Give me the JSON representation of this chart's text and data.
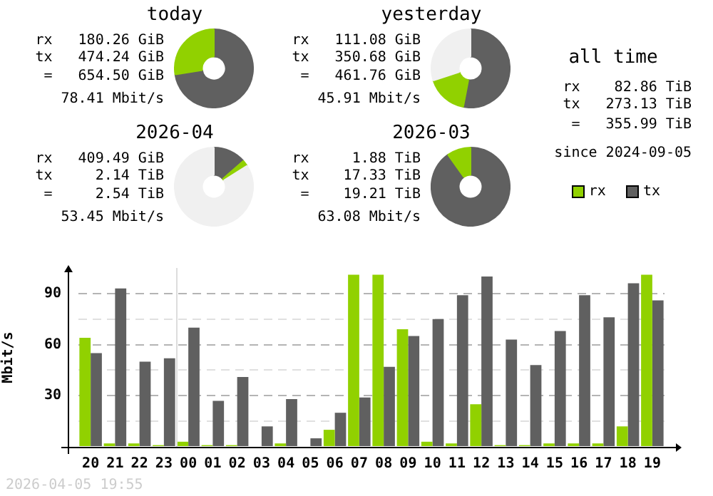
{
  "chart_data": [
    {
      "type": "donut",
      "title": "today",
      "categories": [
        null,
        null
      ],
      "values": [
        72.5,
        27.5
      ],
      "colors": [
        "#606060",
        "#91d100"
      ],
      "annotations": [
        "rx   180.26 GiB",
        "tx   474.24 GiB",
        " =   654.50 GiB",
        "78.41 Mbit/s"
      ]
    },
    {
      "type": "donut",
      "title": "yesterday",
      "categories": [
        null,
        null,
        null
      ],
      "values": [
        53,
        17,
        30
      ],
      "colors": [
        "#606060",
        "#91d100",
        "#f0f0f0"
      ],
      "annotations": [
        "rx   111.08 GiB",
        "tx   350.68 GiB",
        " =   461.76 GiB",
        "45.91 Mbit/s"
      ]
    },
    {
      "type": "other",
      "title": "all time",
      "annotations": [
        "rx    82.86 TiB",
        "tx   273.13 TiB",
        " =   355.99 TiB",
        "since 2024-09-05"
      ]
    },
    {
      "type": "donut",
      "title": "2026-04",
      "categories": [
        null,
        null,
        null
      ],
      "values": [
        13.5,
        2.5,
        84
      ],
      "colors": [
        "#606060",
        "#91d100",
        "#f0f0f0"
      ],
      "annotations": [
        "rx   409.49 GiB",
        "tx     2.14 TiB",
        " =     2.54 TiB",
        "53.45 Mbit/s"
      ]
    },
    {
      "type": "donut",
      "title": "2026-03",
      "categories": [
        null,
        null
      ],
      "values": [
        90.2,
        9.8
      ],
      "colors": [
        "#606060",
        "#91d100"
      ],
      "annotations": [
        "rx     1.88 TiB",
        "tx    17.33 TiB",
        " =    19.21 TiB",
        "63.08 Mbit/s"
      ]
    },
    {
      "type": "bar",
      "ylabel": "Mbit/s",
      "categories": [
        "20",
        "21",
        "22",
        "23",
        "00",
        "01",
        "02",
        "03",
        "04",
        "05",
        "06",
        "07",
        "08",
        "09",
        "10",
        "11",
        "12",
        "13",
        "14",
        "15",
        "16",
        "17",
        "18",
        "19"
      ],
      "series": [
        {
          "name": "rx",
          "color": "#91d100",
          "values": [
            64,
            2,
            2,
            1,
            3,
            1,
            1,
            0,
            2,
            0,
            10,
            101,
            101,
            69,
            3,
            2,
            25,
            1,
            1,
            2,
            2,
            2,
            12,
            101
          ]
        },
        {
          "name": "tx",
          "color": "#606060",
          "values": [
            55,
            93,
            50,
            52,
            70,
            27,
            41,
            12,
            28,
            5,
            20,
            29,
            47,
            65,
            75,
            89,
            100,
            63,
            48,
            68,
            89,
            76,
            96,
            86
          ]
        }
      ],
      "ylim": [
        0,
        105
      ],
      "yticks": [
        {
          "value": 0,
          "label": null
        },
        {
          "value": 15,
          "label": null
        },
        30,
        {
          "value": 45,
          "label": null
        },
        60,
        {
          "value": 75,
          "label": null
        },
        90
      ],
      "grid": "y",
      "legend": "top right",
      "ref_lines": [
        {
          "axis": "x",
          "value": "00",
          "color": "#dddddd"
        }
      ],
      "annotations": [
        "2026-04-05 19:55"
      ]
    }
  ]
}
